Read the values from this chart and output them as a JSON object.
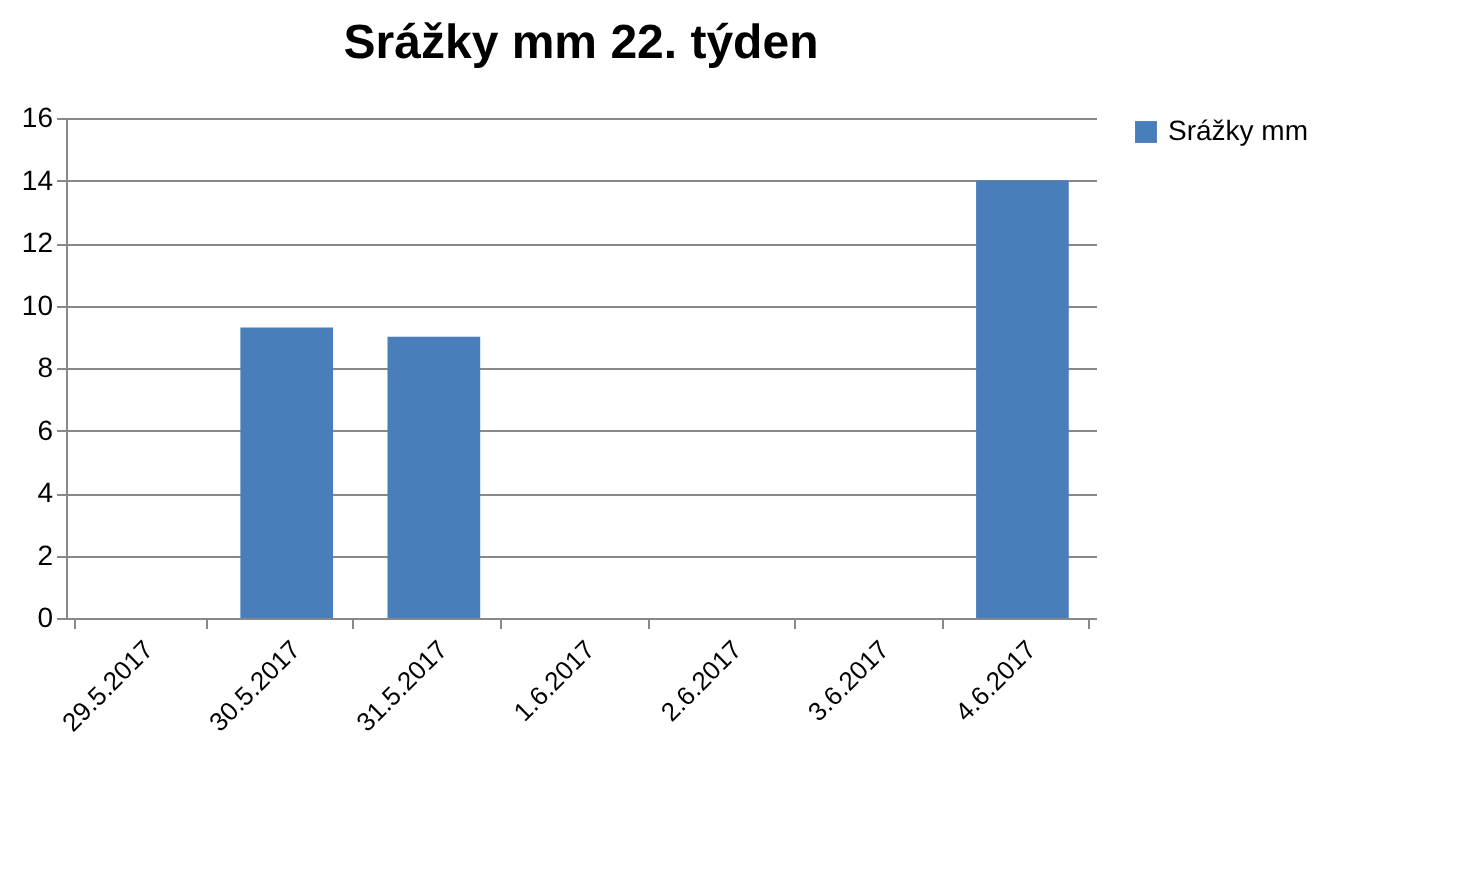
{
  "chart_data": {
    "type": "bar",
    "title": "Srážky mm 22. týden",
    "categories": [
      "29.5.2017",
      "30.5.2017",
      "31.5.2017",
      "1.6.2017",
      "2.6.2017",
      "3.6.2017",
      "4.6.2017"
    ],
    "series": [
      {
        "name": "Srážky mm",
        "color": "#4a7ebb",
        "values": [
          0,
          9.3,
          9.0,
          0,
          0,
          0,
          14
        ]
      }
    ],
    "ylim": [
      0,
      16
    ],
    "yticks": [
      0,
      2,
      4,
      6,
      8,
      10,
      12,
      14,
      16
    ],
    "grid": "y",
    "legend": "right"
  }
}
